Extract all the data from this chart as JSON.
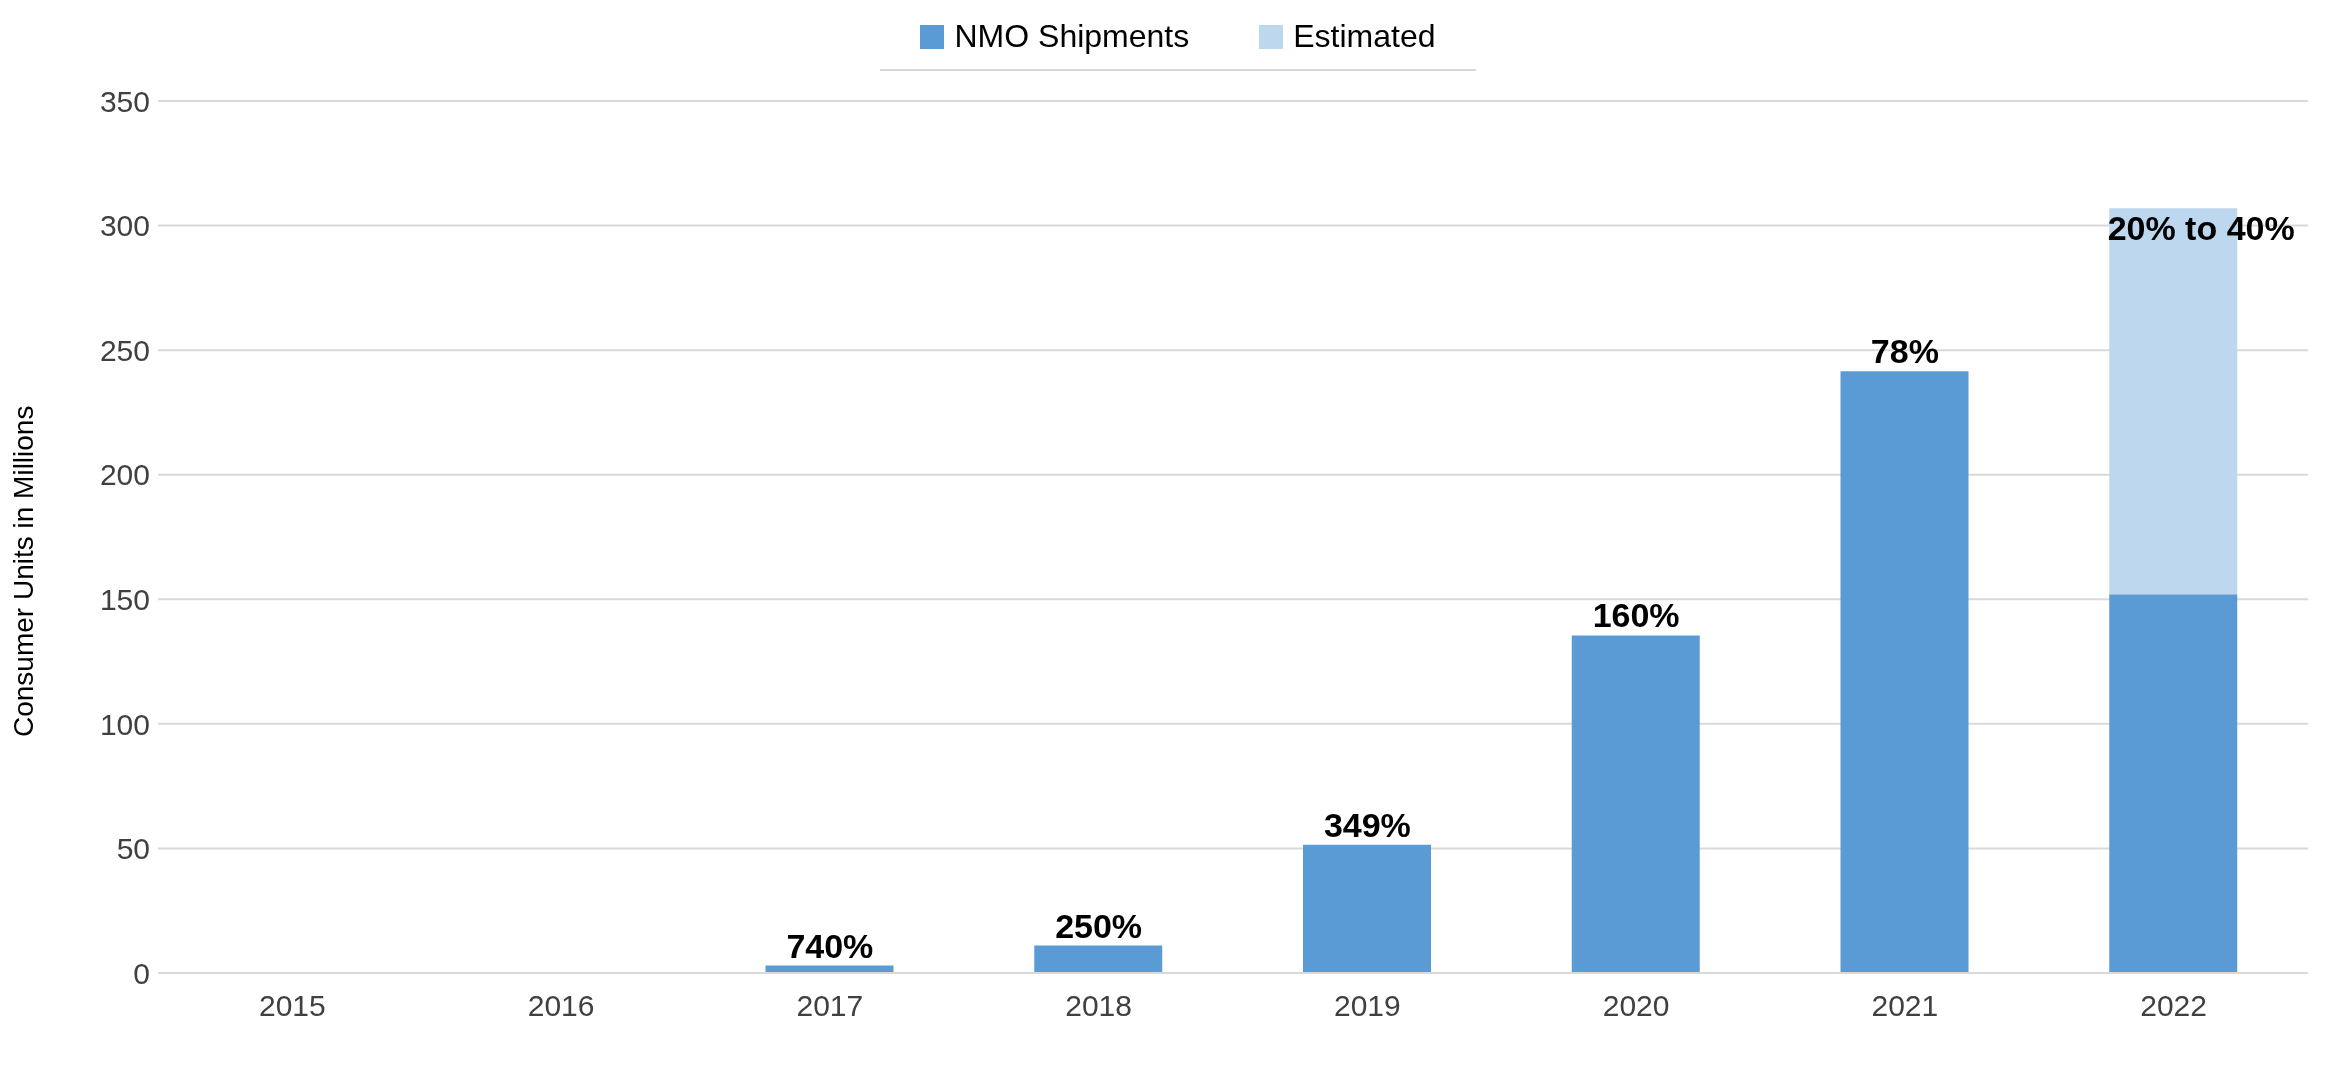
{
  "chart_data": {
    "type": "bar",
    "ylabel": "Consumer Units in Millions",
    "categories": [
      "2015",
      "2016",
      "2017",
      "2018",
      "2019",
      "2020",
      "2021",
      "2022"
    ],
    "stacked": true,
    "series": [
      {
        "name": "NMO Shipments",
        "color": "#5b9bd5",
        "values": [
          0,
          0,
          3,
          11,
          51.5,
          135.5,
          241.5,
          152
        ]
      },
      {
        "name": "Estimated",
        "color": "#bdd7ee",
        "values": [
          null,
          null,
          null,
          null,
          null,
          null,
          null,
          155
        ]
      }
    ],
    "annotations": [
      {
        "text": "740%",
        "x": "2017",
        "y": 3
      },
      {
        "text": "250%",
        "x": "2018",
        "y": 11
      },
      {
        "text": "349%",
        "x": "2019",
        "y": 51.5
      },
      {
        "text": "160%",
        "x": "2020",
        "y": 135.5
      },
      {
        "text": "78%",
        "x": "2021",
        "y": 241.5
      },
      {
        "text": "20% to 40%",
        "x": "2022",
        "y": 307
      }
    ],
    "ylim": [
      0,
      350
    ],
    "yticks": [
      0,
      50,
      100,
      150,
      200,
      250,
      300,
      350
    ],
    "grid": "y",
    "legend": "top"
  }
}
